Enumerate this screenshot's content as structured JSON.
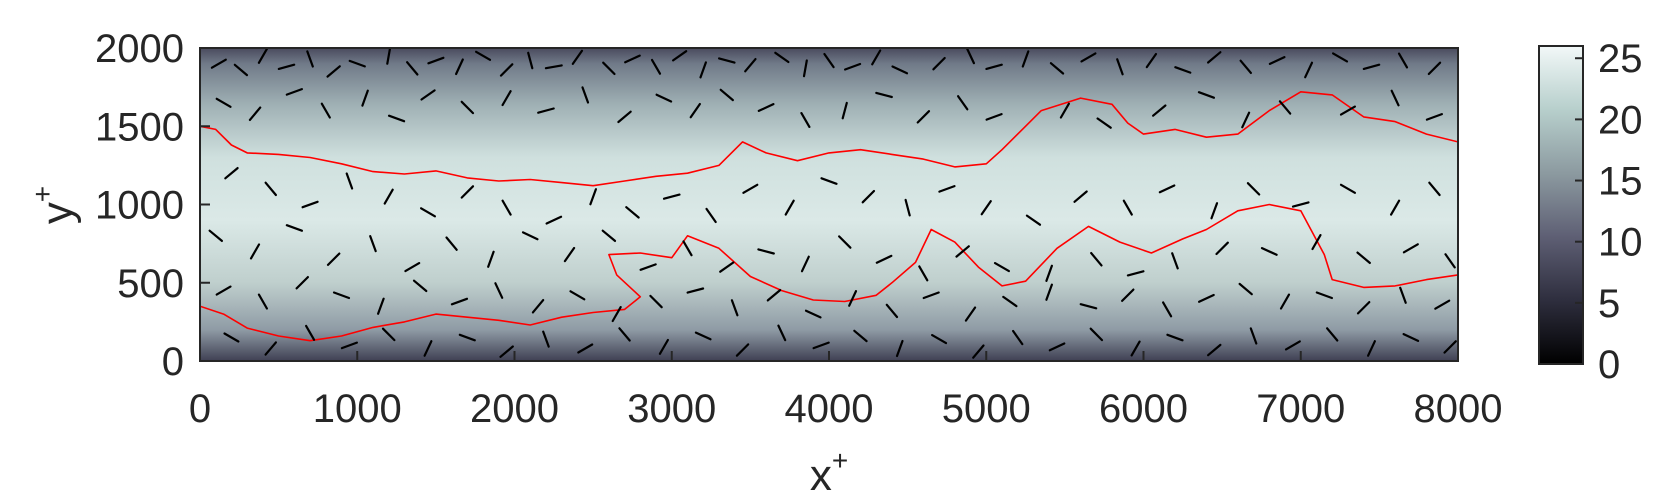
{
  "chart_data": {
    "type": "heatmap",
    "title": "",
    "xlabel": "x",
    "xlabel_sup": "+",
    "ylabel": "y",
    "ylabel_sup": "+",
    "xlim": [
      0,
      8000
    ],
    "ylim": [
      0,
      2000
    ],
    "x_ticks": [
      0,
      1000,
      2000,
      3000,
      4000,
      5000,
      6000,
      7000,
      8000
    ],
    "y_ticks": [
      0,
      500,
      1000,
      1500,
      2000
    ],
    "x_tick_labels": [
      "0",
      "1000",
      "2000",
      "3000",
      "4000",
      "5000",
      "6000",
      "7000",
      "8000"
    ],
    "y_tick_labels": [
      "0",
      "500",
      "1000",
      "1500",
      "2000"
    ],
    "grid": false,
    "colorbar": {
      "range": [
        0,
        26
      ],
      "ticks": [
        0,
        5,
        10,
        15,
        20,
        25
      ],
      "tick_labels": [
        "0",
        "5",
        "10",
        "15",
        "20",
        "25"
      ],
      "colormap": [
        "#000000",
        "#2e2e3e",
        "#5e5f74",
        "#8c9aa0",
        "#b7cfcc",
        "#f2f8f8"
      ]
    },
    "contour_color": "#ff0000",
    "particle_color": "#000000",
    "contour_upper": [
      [
        0,
        1500
      ],
      [
        100,
        1480
      ],
      [
        200,
        1380
      ],
      [
        300,
        1330
      ],
      [
        500,
        1320
      ],
      [
        700,
        1300
      ],
      [
        900,
        1260
      ],
      [
        1100,
        1210
      ],
      [
        1300,
        1195
      ],
      [
        1500,
        1215
      ],
      [
        1700,
        1170
      ],
      [
        1900,
        1150
      ],
      [
        2100,
        1160
      ],
      [
        2300,
        1140
      ],
      [
        2500,
        1120
      ],
      [
        2700,
        1150
      ],
      [
        2900,
        1180
      ],
      [
        3100,
        1200
      ],
      [
        3300,
        1250
      ],
      [
        3450,
        1400
      ],
      [
        3600,
        1330
      ],
      [
        3800,
        1280
      ],
      [
        4000,
        1330
      ],
      [
        4200,
        1350
      ],
      [
        4400,
        1320
      ],
      [
        4600,
        1290
      ],
      [
        4800,
        1240
      ],
      [
        5000,
        1260
      ],
      [
        5100,
        1350
      ],
      [
        5200,
        1450
      ],
      [
        5350,
        1600
      ],
      [
        5600,
        1680
      ],
      [
        5800,
        1640
      ],
      [
        5900,
        1520
      ],
      [
        6000,
        1450
      ],
      [
        6200,
        1480
      ],
      [
        6400,
        1430
      ],
      [
        6600,
        1450
      ],
      [
        6800,
        1600
      ],
      [
        7000,
        1720
      ],
      [
        7200,
        1700
      ],
      [
        7400,
        1560
      ],
      [
        7600,
        1530
      ],
      [
        7800,
        1450
      ],
      [
        8000,
        1400
      ]
    ],
    "contour_lower": [
      [
        0,
        350
      ],
      [
        150,
        300
      ],
      [
        300,
        210
      ],
      [
        500,
        160
      ],
      [
        700,
        130
      ],
      [
        900,
        160
      ],
      [
        1100,
        215
      ],
      [
        1300,
        250
      ],
      [
        1500,
        300
      ],
      [
        1700,
        280
      ],
      [
        1900,
        260
      ],
      [
        2100,
        230
      ],
      [
        2300,
        280
      ],
      [
        2500,
        310
      ],
      [
        2700,
        330
      ],
      [
        2800,
        410
      ],
      [
        2650,
        550
      ],
      [
        2600,
        680
      ],
      [
        2800,
        690
      ],
      [
        3000,
        660
      ],
      [
        3100,
        800
      ],
      [
        3300,
        720
      ],
      [
        3500,
        540
      ],
      [
        3700,
        450
      ],
      [
        3900,
        390
      ],
      [
        4100,
        380
      ],
      [
        4300,
        420
      ],
      [
        4400,
        500
      ],
      [
        4550,
        630
      ],
      [
        4650,
        840
      ],
      [
        4800,
        760
      ],
      [
        4950,
        600
      ],
      [
        5100,
        480
      ],
      [
        5250,
        510
      ],
      [
        5450,
        720
      ],
      [
        5650,
        860
      ],
      [
        5850,
        760
      ],
      [
        6050,
        690
      ],
      [
        6250,
        780
      ],
      [
        6400,
        840
      ],
      [
        6600,
        960
      ],
      [
        6800,
        1000
      ],
      [
        7000,
        960
      ],
      [
        7150,
        680
      ],
      [
        7200,
        520
      ],
      [
        7400,
        470
      ],
      [
        7600,
        480
      ],
      [
        7800,
        520
      ],
      [
        8000,
        550
      ]
    ],
    "particles": [
      [
        120,
        1900,
        30
      ],
      [
        260,
        1860,
        -40
      ],
      [
        400,
        1950,
        60
      ],
      [
        550,
        1880,
        15
      ],
      [
        700,
        1930,
        -70
      ],
      [
        850,
        1850,
        40
      ],
      [
        1000,
        1900,
        -20
      ],
      [
        1200,
        1950,
        80
      ],
      [
        1350,
        1870,
        -50
      ],
      [
        1500,
        1920,
        20
      ],
      [
        1650,
        1880,
        65
      ],
      [
        1800,
        1950,
        -30
      ],
      [
        1950,
        1860,
        45
      ],
      [
        2100,
        1920,
        -75
      ],
      [
        2250,
        1880,
        10
      ],
      [
        2400,
        1940,
        55
      ],
      [
        2600,
        1870,
        -45
      ],
      [
        2750,
        1930,
        25
      ],
      [
        2900,
        1880,
        -60
      ],
      [
        3050,
        1950,
        35
      ],
      [
        3200,
        1860,
        70
      ],
      [
        3350,
        1920,
        -15
      ],
      [
        3500,
        1890,
        50
      ],
      [
        3700,
        1940,
        -35
      ],
      [
        3850,
        1870,
        80
      ],
      [
        4000,
        1920,
        -55
      ],
      [
        4150,
        1880,
        20
      ],
      [
        4300,
        1940,
        60
      ],
      [
        4450,
        1860,
        -25
      ],
      [
        4700,
        1900,
        45
      ],
      [
        4900,
        1950,
        -65
      ],
      [
        5050,
        1880,
        15
      ],
      [
        5250,
        1930,
        70
      ],
      [
        5450,
        1870,
        -40
      ],
      [
        5650,
        1940,
        30
      ],
      [
        5850,
        1880,
        -70
      ],
      [
        6050,
        1920,
        55
      ],
      [
        6250,
        1860,
        -20
      ],
      [
        6450,
        1940,
        40
      ],
      [
        6650,
        1880,
        -50
      ],
      [
        6850,
        1920,
        25
      ],
      [
        7050,
        1860,
        65
      ],
      [
        7250,
        1940,
        -30
      ],
      [
        7450,
        1880,
        15
      ],
      [
        7650,
        1920,
        -60
      ],
      [
        7850,
        1870,
        45
      ],
      [
        150,
        1650,
        -30
      ],
      [
        350,
        1580,
        50
      ],
      [
        600,
        1720,
        20
      ],
      [
        800,
        1600,
        -60
      ],
      [
        1050,
        1680,
        70
      ],
      [
        1250,
        1550,
        -20
      ],
      [
        1450,
        1700,
        35
      ],
      [
        1700,
        1620,
        -45
      ],
      [
        1950,
        1680,
        60
      ],
      [
        2200,
        1600,
        15
      ],
      [
        2450,
        1700,
        -70
      ],
      [
        2700,
        1560,
        40
      ],
      [
        2950,
        1680,
        -25
      ],
      [
        3150,
        1600,
        55
      ],
      [
        3350,
        1700,
        -40
      ],
      [
        3600,
        1620,
        25
      ],
      [
        3850,
        1540,
        -60
      ],
      [
        4100,
        1600,
        75
      ],
      [
        4350,
        1700,
        -15
      ],
      [
        4600,
        1560,
        45
      ],
      [
        4850,
        1650,
        -55
      ],
      [
        5050,
        1560,
        20
      ],
      [
        5500,
        1600,
        60
      ],
      [
        5750,
        1520,
        -35
      ],
      [
        6100,
        1600,
        40
      ],
      [
        6400,
        1700,
        -20
      ],
      [
        6650,
        1540,
        65
      ],
      [
        6900,
        1620,
        -50
      ],
      [
        7300,
        1600,
        30
      ],
      [
        7600,
        1680,
        -65
      ],
      [
        7850,
        1560,
        20
      ],
      [
        200,
        1200,
        40
      ],
      [
        450,
        1100,
        -50
      ],
      [
        700,
        1000,
        20
      ],
      [
        950,
        1150,
        -70
      ],
      [
        1200,
        1050,
        60
      ],
      [
        1450,
        950,
        -30
      ],
      [
        1700,
        1080,
        45
      ],
      [
        1950,
        980,
        -60
      ],
      [
        2250,
        900,
        25
      ],
      [
        2500,
        1050,
        70
      ],
      [
        2750,
        950,
        -40
      ],
      [
        3000,
        1050,
        15
      ],
      [
        3250,
        930,
        -55
      ],
      [
        3500,
        1100,
        30
      ],
      [
        3750,
        980,
        60
      ],
      [
        4000,
        1150,
        -20
      ],
      [
        4250,
        1050,
        45
      ],
      [
        4500,
        980,
        -75
      ],
      [
        4750,
        1100,
        20
      ],
      [
        5000,
        980,
        55
      ],
      [
        5300,
        900,
        -35
      ],
      [
        5600,
        1050,
        40
      ],
      [
        5900,
        980,
        -60
      ],
      [
        6150,
        1100,
        25
      ],
      [
        6450,
        960,
        70
      ],
      [
        6700,
        1100,
        -45
      ],
      [
        7000,
        1000,
        15
      ],
      [
        7300,
        1100,
        -30
      ],
      [
        7600,
        980,
        60
      ],
      [
        7850,
        1100,
        -50
      ],
      [
        100,
        800,
        -40
      ],
      [
        350,
        700,
        60
      ],
      [
        600,
        850,
        -20
      ],
      [
        850,
        650,
        45
      ],
      [
        1100,
        750,
        -70
      ],
      [
        1350,
        600,
        30
      ],
      [
        1600,
        750,
        -50
      ],
      [
        1850,
        650,
        70
      ],
      [
        2100,
        800,
        -25
      ],
      [
        2350,
        680,
        55
      ],
      [
        2600,
        800,
        -40
      ],
      [
        2850,
        600,
        20
      ],
      [
        3100,
        720,
        -60
      ],
      [
        3350,
        600,
        35
      ],
      [
        3600,
        700,
        -15
      ],
      [
        3850,
        620,
        65
      ],
      [
        4100,
        760,
        -45
      ],
      [
        4350,
        650,
        25
      ],
      [
        4600,
        560,
        -60
      ],
      [
        4850,
        700,
        40
      ],
      [
        5100,
        600,
        -30
      ],
      [
        5400,
        560,
        70
      ],
      [
        5700,
        650,
        -50
      ],
      [
        5950,
        560,
        15
      ],
      [
        6200,
        640,
        -70
      ],
      [
        6500,
        720,
        45
      ],
      [
        6800,
        700,
        -25
      ],
      [
        7100,
        760,
        60
      ],
      [
        7400,
        660,
        -40
      ],
      [
        7700,
        720,
        30
      ],
      [
        7950,
        640,
        -55
      ],
      [
        150,
        450,
        30
      ],
      [
        400,
        380,
        -60
      ],
      [
        650,
        500,
        45
      ],
      [
        900,
        420,
        -20
      ],
      [
        1150,
        350,
        70
      ],
      [
        1400,
        480,
        -40
      ],
      [
        1650,
        380,
        20
      ],
      [
        1900,
        450,
        -65
      ],
      [
        2150,
        350,
        50
      ],
      [
        2400,
        420,
        -30
      ],
      [
        2650,
        300,
        60
      ],
      [
        2900,
        380,
        -45
      ],
      [
        3150,
        450,
        15
      ],
      [
        3400,
        340,
        -70
      ],
      [
        3650,
        420,
        40
      ],
      [
        3900,
        300,
        -25
      ],
      [
        4150,
        400,
        65
      ],
      [
        4400,
        320,
        -50
      ],
      [
        4650,
        420,
        20
      ],
      [
        4900,
        300,
        55
      ],
      [
        5150,
        380,
        -35
      ],
      [
        5400,
        440,
        70
      ],
      [
        5650,
        350,
        -15
      ],
      [
        5900,
        420,
        45
      ],
      [
        6150,
        330,
        -60
      ],
      [
        6400,
        400,
        25
      ],
      [
        6650,
        460,
        -40
      ],
      [
        6900,
        380,
        60
      ],
      [
        7150,
        420,
        -20
      ],
      [
        7400,
        340,
        45
      ],
      [
        7650,
        420,
        -70
      ],
      [
        7900,
        360,
        30
      ],
      [
        200,
        150,
        -30
      ],
      [
        450,
        80,
        50
      ],
      [
        700,
        180,
        -60
      ],
      [
        950,
        100,
        20
      ],
      [
        1200,
        170,
        -45
      ],
      [
        1450,
        80,
        65
      ],
      [
        1700,
        150,
        -20
      ],
      [
        1950,
        60,
        40
      ],
      [
        2200,
        140,
        -70
      ],
      [
        2450,
        80,
        30
      ],
      [
        2700,
        170,
        -50
      ],
      [
        2950,
        90,
        60
      ],
      [
        3200,
        160,
        -25
      ],
      [
        3450,
        70,
        45
      ],
      [
        3700,
        180,
        -65
      ],
      [
        3950,
        100,
        20
      ],
      [
        4200,
        160,
        -40
      ],
      [
        4450,
        80,
        70
      ],
      [
        4700,
        140,
        -30
      ],
      [
        4950,
        60,
        50
      ],
      [
        5200,
        150,
        -55
      ],
      [
        5450,
        90,
        25
      ],
      [
        5700,
        170,
        -45
      ],
      [
        5950,
        80,
        60
      ],
      [
        6200,
        150,
        -20
      ],
      [
        6450,
        70,
        40
      ],
      [
        6700,
        160,
        -70
      ],
      [
        6950,
        100,
        30
      ],
      [
        7200,
        170,
        -50
      ],
      [
        7450,
        80,
        65
      ],
      [
        7700,
        150,
        -25
      ],
      [
        7950,
        90,
        45
      ]
    ]
  }
}
